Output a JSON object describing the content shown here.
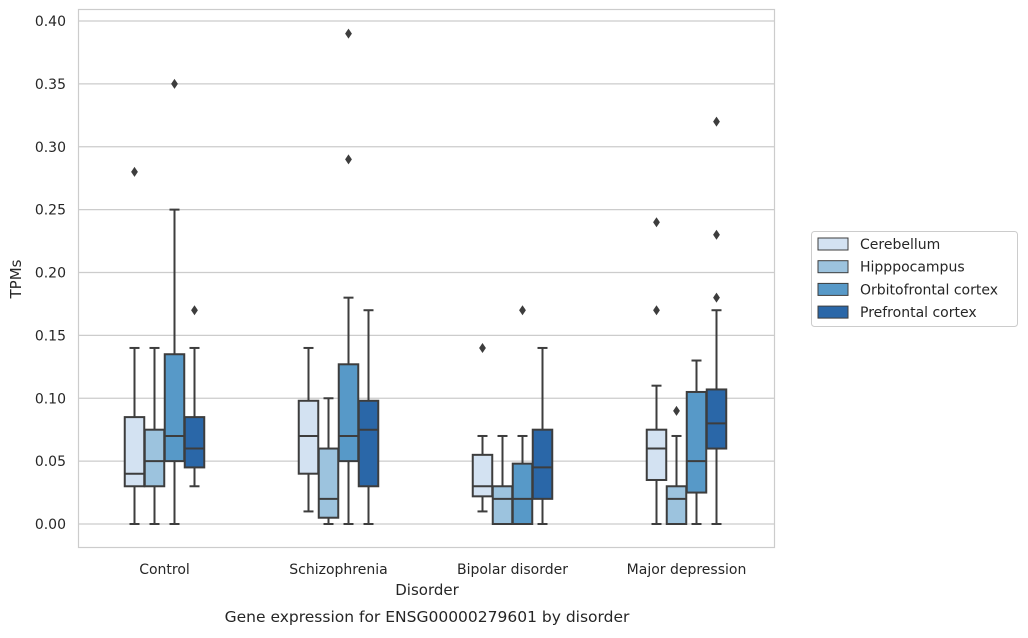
{
  "chart_data": {
    "type": "boxplot",
    "title": "Gene expression for ENSG00000279601 by disorder",
    "xlabel": "Disorder",
    "ylabel": "TPMs",
    "ylim": [
      -0.018,
      0.41
    ],
    "yticks": [
      0.0,
      0.05,
      0.1,
      0.15,
      0.2,
      0.25,
      0.3,
      0.35,
      0.4
    ],
    "ytick_labels": [
      "0.00",
      "0.05",
      "0.10",
      "0.15",
      "0.20",
      "0.25",
      "0.30",
      "0.35",
      "0.40"
    ],
    "grid": "horizontal",
    "legend_position": "right",
    "categories": [
      "Control",
      "Schizophrenia",
      "Bipolar disorder",
      "Major depression"
    ],
    "series": [
      {
        "name": "Cerebellum",
        "color": "#d3e2f2",
        "boxes": [
          {
            "whislo": 0.0,
            "q1": 0.03,
            "med": 0.04,
            "q3": 0.085,
            "whishi": 0.14,
            "fliers": [
              0.28
            ]
          },
          {
            "whislo": 0.01,
            "q1": 0.04,
            "med": 0.07,
            "q3": 0.098,
            "whishi": 0.14,
            "fliers": []
          },
          {
            "whislo": 0.01,
            "q1": 0.022,
            "med": 0.03,
            "q3": 0.055,
            "whishi": 0.07,
            "fliers": [
              0.14
            ]
          },
          {
            "whislo": 0.0,
            "q1": 0.035,
            "med": 0.06,
            "q3": 0.075,
            "whishi": 0.11,
            "fliers": [
              0.17,
              0.24
            ]
          }
        ]
      },
      {
        "name": "Hipppocampus",
        "color": "#9cc3de",
        "boxes": [
          {
            "whislo": 0.0,
            "q1": 0.03,
            "med": 0.05,
            "q3": 0.075,
            "whishi": 0.14,
            "fliers": []
          },
          {
            "whislo": 0.0,
            "q1": 0.005,
            "med": 0.02,
            "q3": 0.06,
            "whishi": 0.1,
            "fliers": []
          },
          {
            "whislo": 0.0,
            "q1": 0.0,
            "med": 0.02,
            "q3": 0.03,
            "whishi": 0.07,
            "fliers": []
          },
          {
            "whislo": 0.0,
            "q1": 0.0,
            "med": 0.02,
            "q3": 0.03,
            "whishi": 0.07,
            "fliers": [
              0.09
            ]
          }
        ]
      },
      {
        "name": "Orbitofrontal cortex",
        "color": "#5799c8",
        "boxes": [
          {
            "whislo": 0.0,
            "q1": 0.05,
            "med": 0.07,
            "q3": 0.135,
            "whishi": 0.25,
            "fliers": [
              0.35
            ]
          },
          {
            "whislo": 0.0,
            "q1": 0.05,
            "med": 0.07,
            "q3": 0.127,
            "whishi": 0.18,
            "fliers": [
              0.29,
              0.39
            ]
          },
          {
            "whislo": 0.0,
            "q1": 0.0,
            "med": 0.02,
            "q3": 0.048,
            "whishi": 0.07,
            "fliers": [
              0.17
            ]
          },
          {
            "whislo": 0.0,
            "q1": 0.025,
            "med": 0.05,
            "q3": 0.105,
            "whishi": 0.13,
            "fliers": []
          }
        ]
      },
      {
        "name": "Prefrontal cortex",
        "color": "#2a67a8",
        "boxes": [
          {
            "whislo": 0.03,
            "q1": 0.045,
            "med": 0.06,
            "q3": 0.085,
            "whishi": 0.14,
            "fliers": [
              0.17
            ]
          },
          {
            "whislo": 0.0,
            "q1": 0.03,
            "med": 0.075,
            "q3": 0.098,
            "whishi": 0.17,
            "fliers": []
          },
          {
            "whislo": 0.0,
            "q1": 0.02,
            "med": 0.045,
            "q3": 0.075,
            "whishi": 0.14,
            "fliers": []
          },
          {
            "whislo": 0.0,
            "q1": 0.06,
            "med": 0.08,
            "q3": 0.107,
            "whishi": 0.17,
            "fliers": [
              0.18,
              0.23,
              0.32
            ]
          }
        ]
      }
    ]
  },
  "colors": {
    "box_edge": "#3d3d3d",
    "grid": "#cccccc",
    "axis_frame": "#cccccc",
    "text": "#262626"
  }
}
